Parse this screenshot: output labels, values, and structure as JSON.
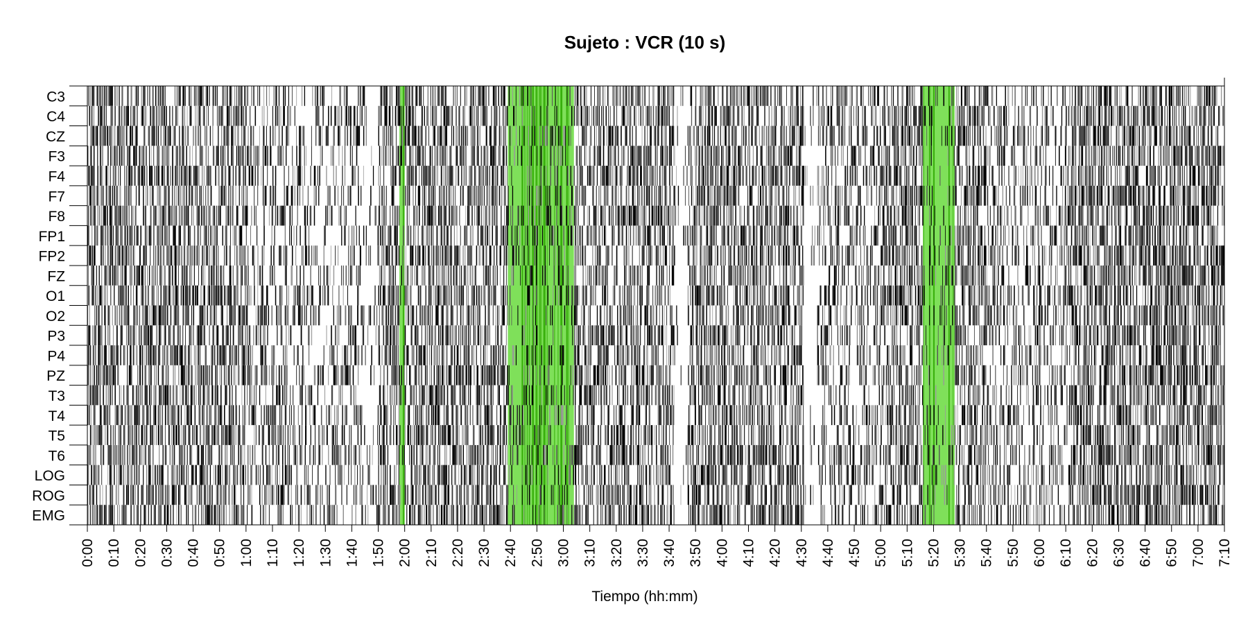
{
  "chart_data": {
    "type": "heatmap",
    "title": "Sujeto : VCR  (10 s)",
    "xlabel": "Tiempo (hh:mm)",
    "ylabel": "",
    "channels": [
      "C3",
      "C4",
      "CZ",
      "F3",
      "F4",
      "F7",
      "F8",
      "FP1",
      "FP2",
      "FZ",
      "O1",
      "O2",
      "P3",
      "P4",
      "PZ",
      "T3",
      "T4",
      "T5",
      "T6",
      "LOG",
      "ROG",
      "EMG"
    ],
    "x_tick_labels": [
      "0:00",
      "0:10",
      "0:20",
      "0:30",
      "0:40",
      "0:50",
      "1:00",
      "1:10",
      "1:20",
      "1:30",
      "1:40",
      "1:50",
      "2:00",
      "2:10",
      "2:20",
      "2:30",
      "2:40",
      "2:50",
      "3:00",
      "3:10",
      "3:20",
      "3:30",
      "3:40",
      "3:50",
      "4:00",
      "4:10",
      "4:20",
      "4:30",
      "4:40",
      "4:50",
      "5:00",
      "5:10",
      "5:20",
      "5:30",
      "5:40",
      "5:50",
      "6:00",
      "6:10",
      "6:20",
      "6:30",
      "6:40",
      "6:50",
      "7:00",
      "7:10"
    ],
    "xlim_minutes": [
      0,
      430
    ],
    "epoch_seconds": 10,
    "mark_color": "#000000",
    "highlight_color": "#7fe05a",
    "highlight_color_dark": "#2ea800",
    "highlight_intervals_minutes": [
      [
        118,
        120
      ],
      [
        159,
        184
      ],
      [
        316,
        328
      ]
    ],
    "activity_segments_minutes": [
      {
        "range": [
          0,
          60
        ],
        "density": 0.55
      },
      {
        "range": [
          60,
          75
        ],
        "density": 0.35
      },
      {
        "range": [
          75,
          105
        ],
        "density": 0.3
      },
      {
        "range": [
          105,
          110
        ],
        "density": 0.1
      },
      {
        "range": [
          110,
          158
        ],
        "density": 0.55
      },
      {
        "range": [
          158,
          185
        ],
        "density": 0.6
      },
      {
        "range": [
          185,
          222
        ],
        "density": 0.5
      },
      {
        "range": [
          222,
          227
        ],
        "density": 0.05
      },
      {
        "range": [
          227,
          271
        ],
        "density": 0.55
      },
      {
        "range": [
          271,
          276
        ],
        "density": 0.05
      },
      {
        "range": [
          276,
          300
        ],
        "density": 0.35
      },
      {
        "range": [
          300,
          340
        ],
        "density": 0.5
      },
      {
        "range": [
          340,
          372
        ],
        "density": 0.35
      },
      {
        "range": [
          372,
          428
        ],
        "density": 0.6
      }
    ]
  }
}
